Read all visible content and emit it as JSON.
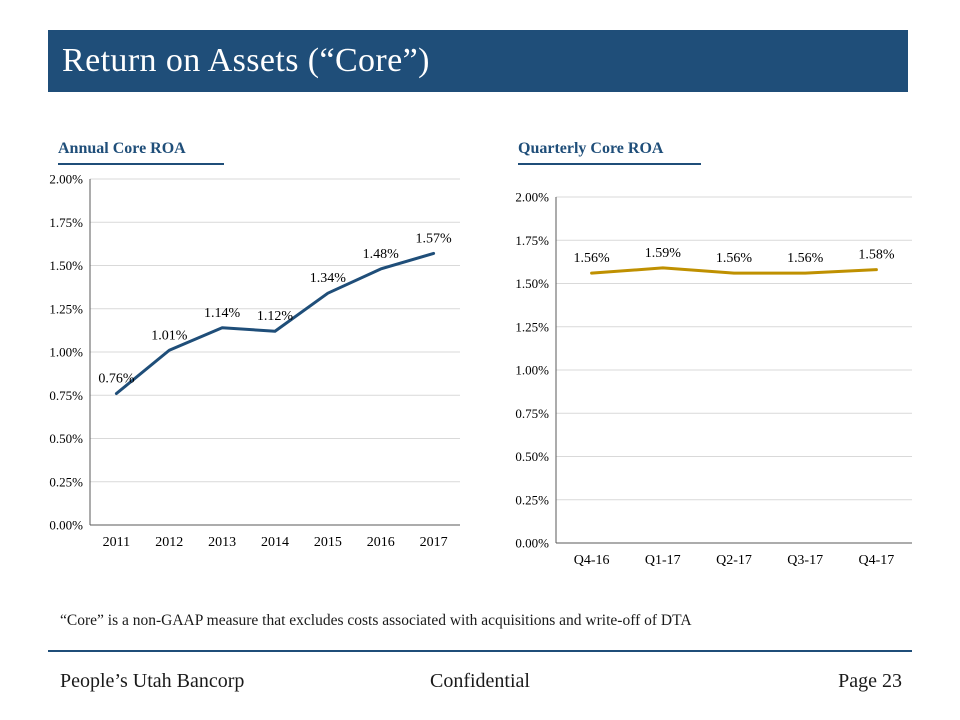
{
  "slide": {
    "title": "Return on Assets (“Core”)",
    "footnote": "“Core” is a non-GAAP measure that excludes costs associated with acquisitions and write-off of DTA",
    "footer": {
      "left": "People’s Utah Bancorp",
      "center": "Confidential",
      "right": "Page 23"
    }
  },
  "chart_data": [
    {
      "type": "line",
      "title": "Annual Core ROA",
      "categories": [
        "2011",
        "2012",
        "2013",
        "2014",
        "2015",
        "2016",
        "2017"
      ],
      "values": [
        0.76,
        1.01,
        1.14,
        1.12,
        1.34,
        1.48,
        1.57
      ],
      "point_labels": [
        "0.76%",
        "1.01%",
        "1.14%",
        "1.12%",
        "1.34%",
        "1.48%",
        "1.57%"
      ],
      "y_ticks": [
        "0.00%",
        "0.25%",
        "0.50%",
        "0.75%",
        "1.00%",
        "1.25%",
        "1.50%",
        "1.75%",
        "2.00%"
      ],
      "ylim": [
        0,
        2
      ],
      "xlabel": "",
      "ylabel": "",
      "grid": true,
      "legend_position": "none",
      "line_color": "#1F4E79"
    },
    {
      "type": "line",
      "title": "Quarterly Core ROA",
      "categories": [
        "Q4-16",
        "Q1-17",
        "Q2-17",
        "Q3-17",
        "Q4-17"
      ],
      "values": [
        1.56,
        1.59,
        1.56,
        1.56,
        1.58
      ],
      "point_labels": [
        "1.56%",
        "1.59%",
        "1.56%",
        "1.56%",
        "1.58%"
      ],
      "y_ticks": [
        "0.00%",
        "0.25%",
        "0.50%",
        "0.75%",
        "1.00%",
        "1.25%",
        "1.50%",
        "1.75%",
        "2.00%"
      ],
      "ylim": [
        0,
        2
      ],
      "xlabel": "",
      "ylabel": "",
      "grid": true,
      "legend_position": "none",
      "line_color": "#BF9000"
    }
  ],
  "colors": {
    "banner": "#1F4E79",
    "annual_line": "#1F4E79",
    "quarterly_line": "#BF9000",
    "gridline": "#D9D9D9",
    "axis": "#595959"
  }
}
